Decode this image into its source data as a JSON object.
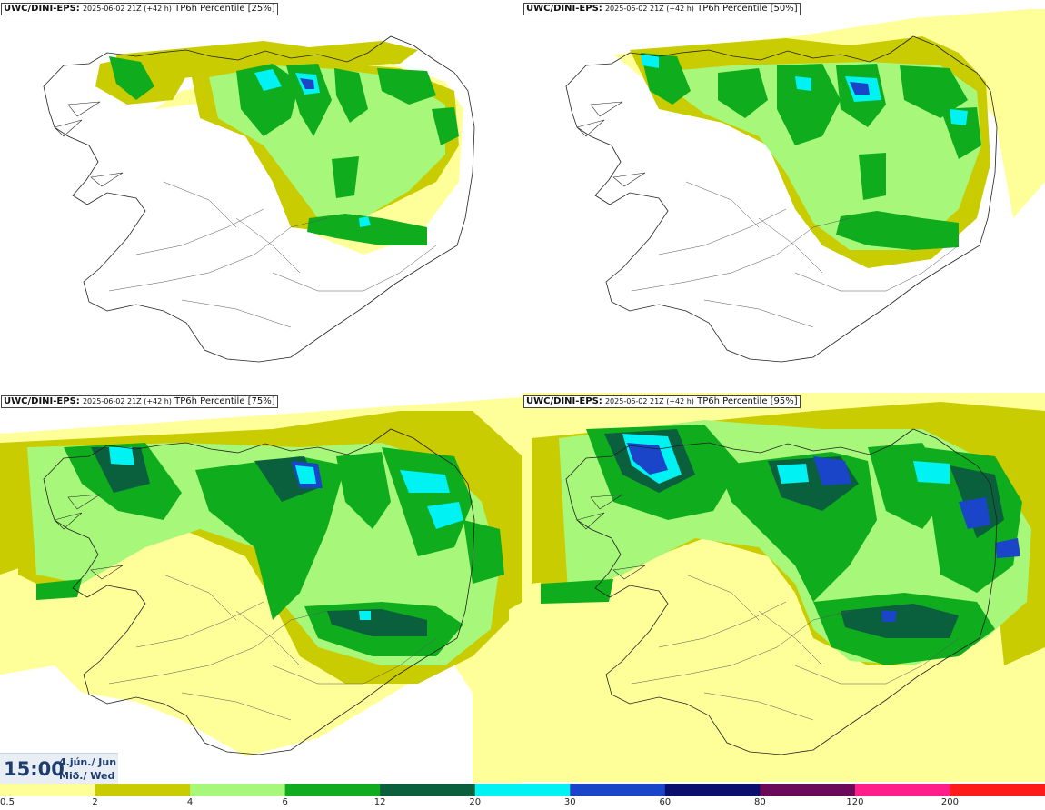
{
  "panels": [
    {
      "model": "UWC/DINI-EPS:",
      "run": "2025-06-02 21Z (+42 h)",
      "product": "TP6h Percentile [25%]"
    },
    {
      "model": "UWC/DINI-EPS:",
      "run": "2025-06-02 21Z (+42 h)",
      "product": "TP6h Percentile [50%]"
    },
    {
      "model": "UWC/DINI-EPS:",
      "run": "2025-06-02 21Z (+42 h)",
      "product": "TP6h Percentile [75%]"
    },
    {
      "model": "UWC/DINI-EPS:",
      "run": "2025-06-02 21Z (+42 h)",
      "product": "TP6h Percentile [95%]"
    }
  ],
  "time": {
    "clock": "15:00",
    "date": "4.jún./ Jun",
    "weekday": "Mið./ Wed"
  },
  "legend": {
    "labels": [
      "0.5",
      "2",
      "4",
      "6",
      "12",
      "20",
      "30",
      "60",
      "80",
      "120",
      "200"
    ],
    "colors": [
      "#ffff99",
      "#c9cc00",
      "#a6f77a",
      "#0fac1e",
      "#0a5f3c",
      "#00f2f2",
      "#1a45c8",
      "#0a0f6e",
      "#6b0a5a",
      "#ff1e8a",
      "#ff1a1a"
    ]
  },
  "colors": {
    "light": "#ffff99",
    "olive": "#c9cc00",
    "lightgreen": "#a6f77a",
    "green": "#0fac1e",
    "darkgreen": "#0a5f3c",
    "cyan": "#00f2f2",
    "blue": "#1a45c8"
  }
}
